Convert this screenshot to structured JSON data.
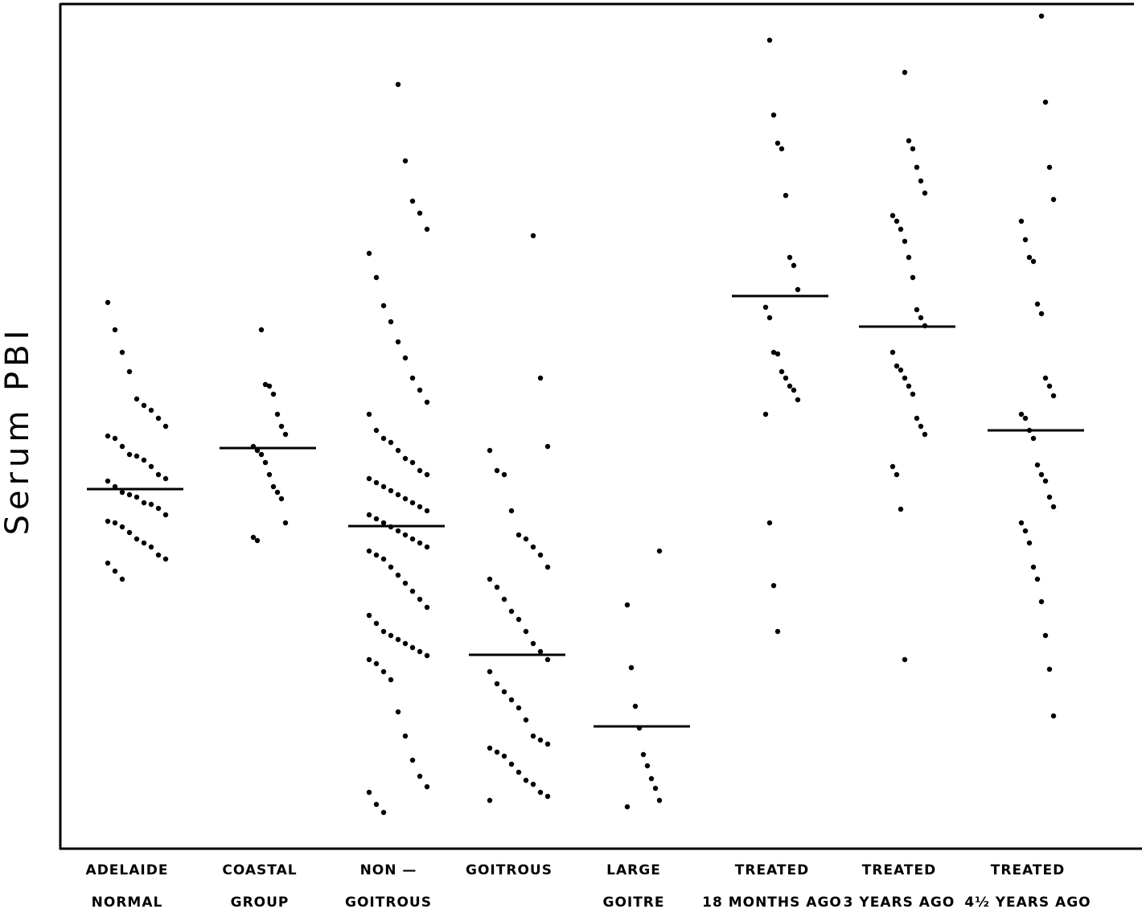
{
  "chart_data": {
    "type": "dot",
    "ylabel": "Serum PBI",
    "ylim": [
      0,
      105
    ],
    "color": "#000000",
    "groups": [
      {
        "label": [
          "ADELAIDE",
          "NORMAL"
        ],
        "mean": 44.7,
        "values": [
          67.9,
          64.5,
          61.7,
          59.3,
          55.9,
          55.1,
          54.5,
          53.5,
          52.5,
          51.3,
          51.0,
          50.0,
          49.0,
          48.8,
          48.3,
          47.5,
          46.5,
          46.0,
          45.7,
          45.0,
          44.3,
          44.0,
          43.7,
          43.0,
          42.8,
          42.3,
          41.5,
          40.7,
          40.5,
          40.0,
          39.3,
          38.5,
          38.0,
          37.5,
          36.5,
          36.0,
          35.5,
          34.5,
          33.5
        ]
      },
      {
        "label": [
          "COASTAL",
          "GROUP"
        ],
        "mean": 49.8,
        "values": [
          64.5,
          57.7,
          57.5,
          56.5,
          54.0,
          52.5,
          51.5,
          50.0,
          49.5,
          49.0,
          48.0,
          46.5,
          45.0,
          44.3,
          43.5,
          40.5,
          38.7,
          38.3
        ]
      },
      {
        "label": [
          "NON —",
          "GOITROUS"
        ],
        "mean": 40.1,
        "values": [
          95.0,
          85.5,
          80.5,
          79.0,
          77.0,
          74.0,
          71.0,
          67.5,
          65.5,
          63.0,
          61.0,
          58.5,
          57.0,
          55.5,
          54.0,
          52.0,
          51.0,
          50.5,
          49.5,
          48.5,
          48.0,
          47.0,
          46.5,
          46.0,
          45.5,
          45.0,
          44.5,
          44.0,
          43.5,
          43.0,
          42.5,
          42.0,
          41.5,
          41.0,
          40.5,
          40.0,
          39.5,
          39.0,
          38.5,
          38.0,
          37.5,
          37.0,
          36.5,
          36.0,
          35.0,
          34.0,
          33.0,
          32.0,
          31.0,
          30.0,
          29.0,
          28.0,
          27.0,
          26.5,
          26.0,
          25.5,
          25.0,
          24.5,
          24.0,
          23.5,
          23.0,
          22.0,
          21.0,
          17.0,
          14.0,
          11.0,
          9.0,
          7.7,
          7.0,
          5.5,
          4.5
        ]
      },
      {
        "label": [
          "GOITROUS"
        ],
        "mean": 24.1,
        "values": [
          76.2,
          58.5,
          50.0,
          49.5,
          47.0,
          46.5,
          42.0,
          39.0,
          38.5,
          37.5,
          36.5,
          35.0,
          33.5,
          32.5,
          31.0,
          29.5,
          28.5,
          27.0,
          25.5,
          24.5,
          23.5,
          22.0,
          20.5,
          19.5,
          18.5,
          17.5,
          16.0,
          14.0,
          13.5,
          13.0,
          12.5,
          12.0,
          11.5,
          10.5,
          9.5,
          8.5,
          8.0,
          7.0,
          6.5,
          6.0
        ]
      },
      {
        "label": [
          "LARGE",
          "GOITRE"
        ],
        "mean": 15.2,
        "values": [
          37.0,
          30.3,
          22.5,
          17.7,
          15.0,
          11.7,
          10.3,
          8.7,
          7.5,
          6.0,
          5.2
        ]
      },
      {
        "label": [
          "TREATED",
          "18 MONTHS AGO"
        ],
        "mean": 68.7,
        "values": [
          100.5,
          91.2,
          87.7,
          87.0,
          81.2,
          73.5,
          72.5,
          69.5,
          67.3,
          66.0,
          61.7,
          61.5,
          59.3,
          58.5,
          57.5,
          57.0,
          55.8,
          54.0,
          40.5,
          32.7,
          27.0
        ]
      },
      {
        "label": [
          "TREATED",
          "3 YEARS AGO"
        ],
        "mean": 64.9,
        "values": [
          96.5,
          88.0,
          87.0,
          84.7,
          83.0,
          81.5,
          78.7,
          78.0,
          77.0,
          75.5,
          73.5,
          71.0,
          67.0,
          66.0,
          65.0,
          61.7,
          60.0,
          59.5,
          58.5,
          57.5,
          56.5,
          53.5,
          52.5,
          51.5,
          47.5,
          46.5,
          42.2,
          23.5
        ]
      },
      {
        "label": [
          "TREATED",
          "4½ YEARS AGO"
        ],
        "mean": 52.0,
        "values": [
          103.5,
          92.8,
          84.7,
          80.7,
          78.0,
          75.7,
          73.5,
          73.0,
          67.7,
          66.5,
          58.5,
          57.5,
          56.3,
          54.0,
          53.5,
          52.0,
          51.0,
          47.7,
          46.5,
          45.7,
          43.7,
          42.5,
          40.5,
          39.5,
          38.0,
          35.0,
          33.5,
          30.7,
          26.5,
          22.3,
          16.5
        ]
      }
    ]
  }
}
